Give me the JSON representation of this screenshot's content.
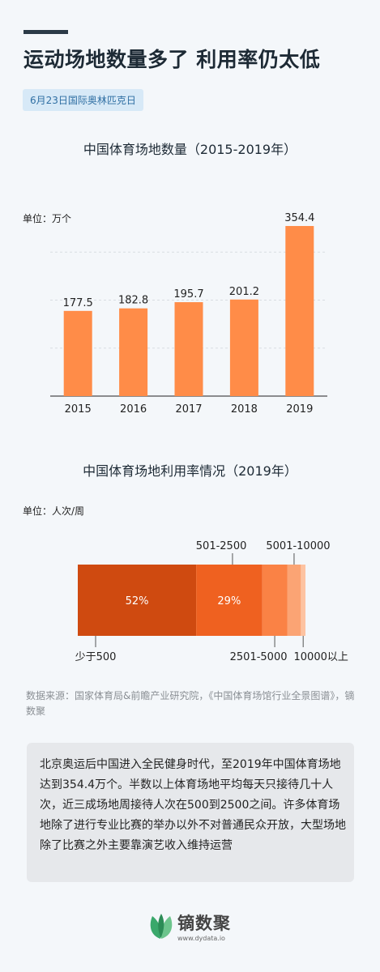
{
  "title": "运动场地数量多了 利用率仍太低",
  "date_tag": "6月23日国际奥林匹克日",
  "chart1": {
    "title": "中国体育场地数量（2015-2019年）",
    "unit": "单位：万个"
  },
  "chart2": {
    "title": "中国体育场地利用率情况（2019年）",
    "unit": "单位：人次/周"
  },
  "chart_data": [
    {
      "type": "bar",
      "title": "中国体育场地数量（2015-2019年）",
      "ylabel": "单位：万个",
      "categories": [
        "2015",
        "2016",
        "2017",
        "2018",
        "2019"
      ],
      "values": [
        177.5,
        182.8,
        195.7,
        201.2,
        354.4
      ],
      "value_labels": [
        "177.5",
        "182.8",
        "195.7",
        "201.2",
        "354.4"
      ],
      "ylim": [
        0,
        400
      ],
      "color": "#ff8c48",
      "grid": true
    },
    {
      "type": "bar",
      "stacked": true,
      "orientation": "horizontal",
      "title": "中国体育场地利用率情况（2019年）",
      "ylabel": "单位：人次/周",
      "segments": [
        {
          "category": "少于500",
          "value": 52,
          "label": "52%",
          "color": "#cf4a10"
        },
        {
          "category": "501-2500",
          "value": 29,
          "label": "29%",
          "color": "#ef6120"
        },
        {
          "category": "2501-5000",
          "value": 11,
          "label": "",
          "color": "#fa8245"
        },
        {
          "category": "5001-10000",
          "value": 6,
          "label": "",
          "color": "#fba474"
        },
        {
          "category": "10000以上",
          "value": 2,
          "label": "",
          "color": "#fdc3a1"
        }
      ],
      "xlim": [
        0,
        100
      ]
    }
  ],
  "source": "数据来源：国家体育局&前瞻产业研究院，《中国体育场馆行业全景图谱》，镝数聚",
  "summary": "北京奥运后中国进入全民健身时代，至2019年中国体育场地达到354.4万个。半数以上体育场地平均每天只接待几十人次，近三成场地周接待人次在500到2500之间。许多体育场地除了进行专业比赛的举办以外不对普通民众开放，大型场地除了比赛之外主要靠演艺收入维持运营",
  "logo": {
    "icon": "leaf-logo-icon",
    "name": "镝数聚",
    "url": "www.dydata.io"
  }
}
